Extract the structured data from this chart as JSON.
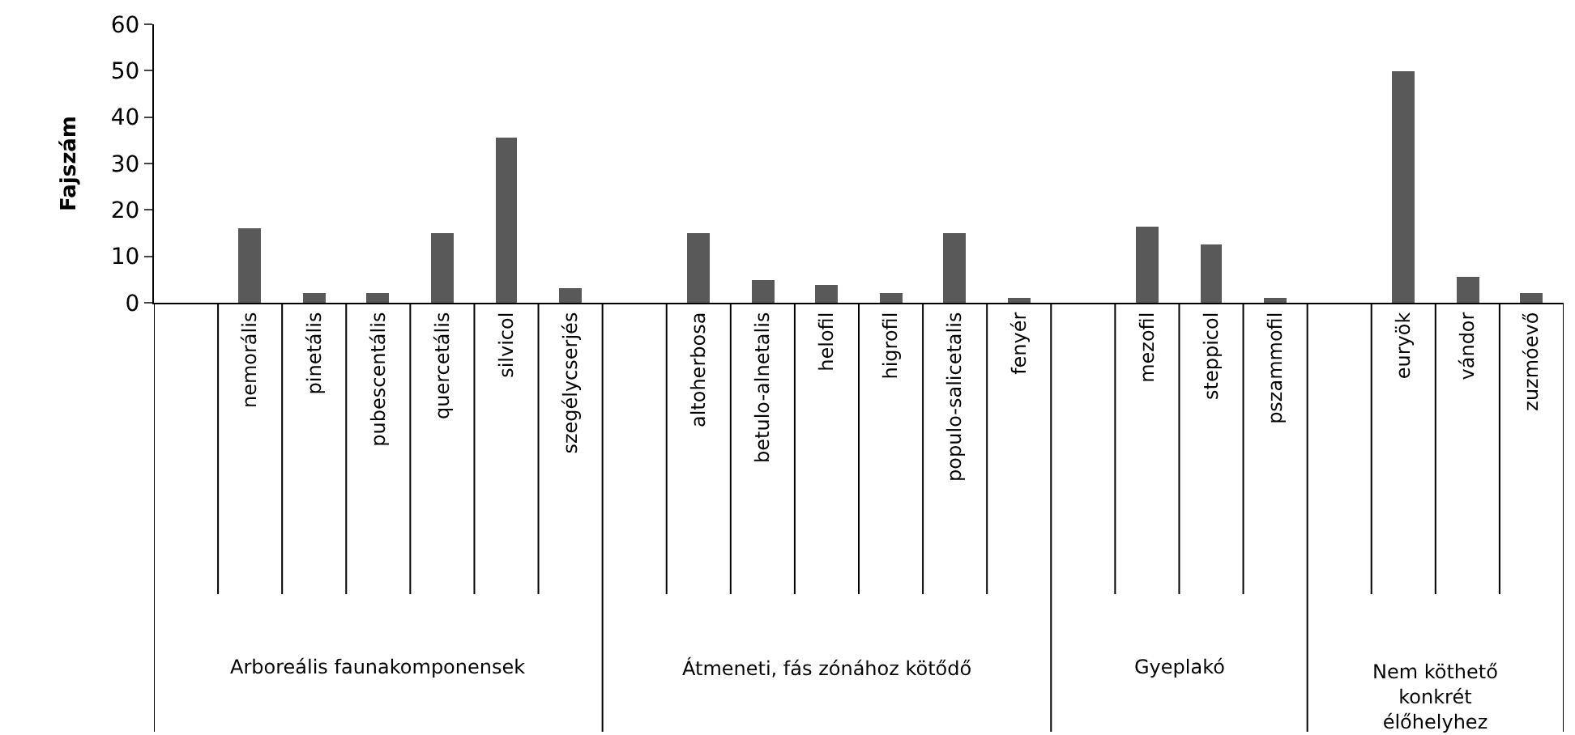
{
  "chart_data": {
    "type": "bar",
    "ylabel": "Fajszám",
    "categories": [
      null,
      "nemorális",
      "pinetális",
      "pubescentális",
      "quercetális",
      "silvicol",
      "szegélycserjés",
      null,
      "altoherbosa",
      "betulo-alnetalis",
      "helofil",
      "higrofil",
      "populo-salicetalis",
      "fenyér",
      null,
      "mezofil",
      "steppicol",
      "pszammofil",
      null,
      "euryök",
      "vándor",
      "zuzmóevő"
    ],
    "values": [
      null,
      16,
      2,
      2,
      15,
      35.5,
      3,
      null,
      15,
      5,
      4,
      2,
      15,
      1,
      null,
      16.5,
      12.5,
      1,
      null,
      50,
      5.5,
      2
    ],
    "color": "#595959",
    "ylim": [
      0,
      60
    ],
    "yticks": [
      0,
      10,
      20,
      30,
      40,
      50,
      60
    ],
    "grid": false,
    "annotations": [
      "Arboreális faunakomponensek",
      "Átmeneti, fás zónához kötődő",
      "Gyeplakó",
      "Nem köthető konkrét élőhelyhez"
    ]
  }
}
